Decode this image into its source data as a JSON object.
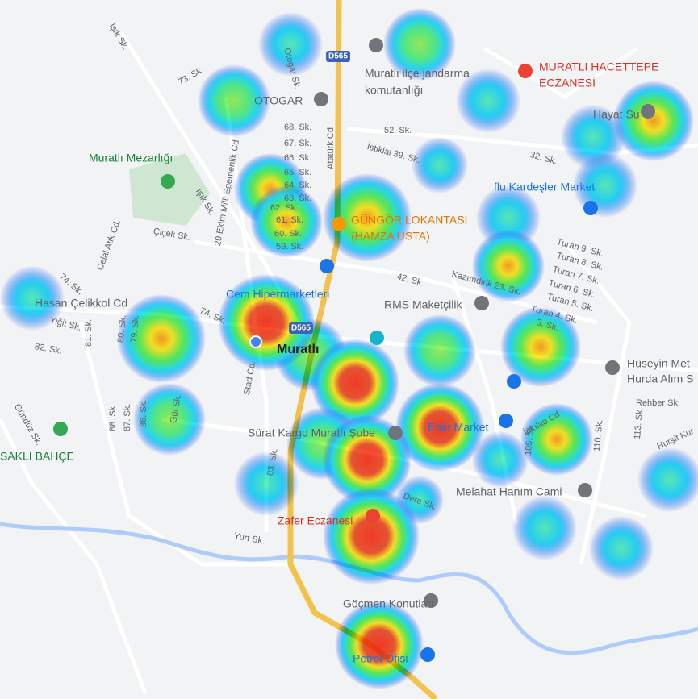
{
  "places": [
    {
      "lines": [
        "Muratlı Mezarlığı"
      ]
    },
    {
      "lines": [
        "OTOGAR"
      ]
    },
    {
      "lines": [
        "Muratlı ilçe jandarma",
        "komutanlığı"
      ]
    },
    {
      "lines": [
        "MURATLI HACETTEPE",
        "ECZANESİ"
      ]
    },
    {
      "lines": [
        "Hayat Su"
      ]
    },
    {
      "lines": [
        "flu Kardeşler Market"
      ]
    },
    {
      "lines": [
        "GÜNGÖR LOKANTASI",
        "(HAMZA USTA)"
      ]
    },
    {
      "lines": [
        "Cem Hipermarketleri"
      ]
    },
    {
      "lines": [
        "RMS Maketçilik"
      ]
    },
    {
      "lines": [
        "Muratlı"
      ]
    },
    {
      "lines": [
        "Hüseyin Met",
        "Hurda Alım S"
      ]
    },
    {
      "lines": [
        "Emir Market"
      ]
    },
    {
      "lines": [
        "Sürat Kargo Muratlı Şube"
      ]
    },
    {
      "lines": [
        "Melahat Hanım Cami"
      ]
    },
    {
      "lines": [
        "Zafer Eczanesi"
      ]
    },
    {
      "lines": [
        "Göçmen Konutları"
      ]
    },
    {
      "lines": [
        "Petrol Ofisi"
      ]
    },
    {
      "lines": [
        "SAKLI BAHÇE"
      ]
    },
    {
      "lines": [
        "Hasan Çelikkol Cd"
      ]
    }
  ],
  "road_shields": [
    "D565",
    "D565"
  ],
  "streets": [
    "Işık Sk.",
    "Otogar Sk.",
    "73. Sk.",
    "68. Sk.",
    "67. Sk.",
    "66. Sk.",
    "65. Sk.",
    "64. Sk.",
    "63. Sk.",
    "62. Sk.",
    "61. Sk.",
    "60. Sk.",
    "59. Sk.",
    "29 Ekim Milli Egemenlik Cd.",
    "Atatürk Cd",
    "52. Sk.",
    "İstiklal 39. Sk.",
    "32. Sk.",
    "Işık Sk.",
    "Çiçek Sk.",
    "Celal Atik Cd.",
    "74. Sk.",
    "42. Sk.",
    "Kazımdirik 23. Sk.",
    "Turan 9. Sk.",
    "Turan 8. Sk.",
    "Turan 7. Sk.",
    "Turan 6. Sk.",
    "Turan 5. Sk.",
    "Turan 4. Sk.",
    "3. Sk.",
    "Yiğit Sk.",
    "82. Sk.",
    "81. Sk.",
    "80. Sk.",
    "79. Sk.",
    "74. Sk.",
    "Stad Cd.",
    "Gündüz Sk.",
    "88. Sk.",
    "87. Sk.",
    "86. Sk.",
    "Gül Sk.",
    "83. Sk.",
    "Rehber Sk.",
    "İnkılap Cd",
    "105. Sk.",
    "110. Sk.",
    "113. Sk.",
    "Hurşit Kur",
    "Dere Sk.",
    "Yurt Sk."
  ]
}
